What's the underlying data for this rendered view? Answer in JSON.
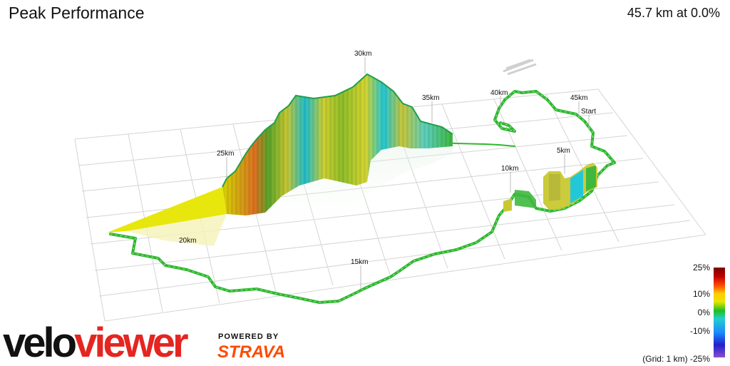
{
  "header": {
    "title": "Peak Performance",
    "summary": "45.7 km at 0.0%"
  },
  "markers": {
    "start": "Start",
    "km5": "5km",
    "km10": "10km",
    "km15": "15km",
    "km20": "20km",
    "km25": "25km",
    "km30": "30km",
    "km35": "35km",
    "km40": "40km",
    "km45": "45km"
  },
  "legend": {
    "max": "25%",
    "p10": "10%",
    "zero": "0%",
    "m10": "-10%",
    "min": "-25%",
    "grid_note": "(Grid: 1 km)"
  },
  "branding": {
    "velo": "velo",
    "viewer": "viewer",
    "powered_by": "POWERED BY",
    "strava": "STRAVA"
  },
  "colors": {
    "brand_red": "#e52520",
    "strava_orange": "#fc4c02",
    "route_green": "#2db82d"
  }
}
